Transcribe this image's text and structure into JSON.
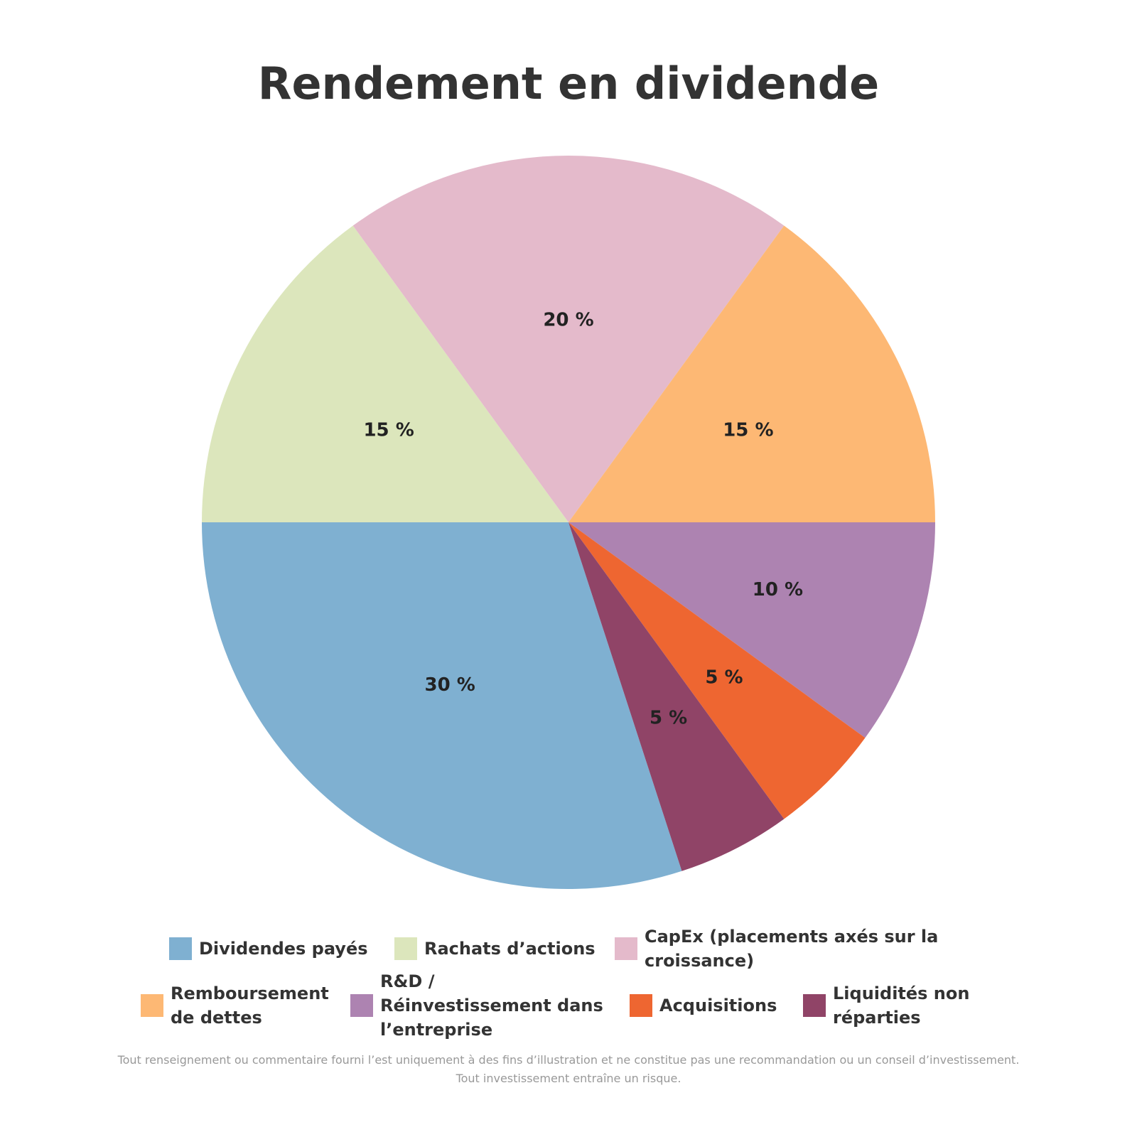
{
  "chart_data": {
    "type": "pie",
    "title": "Rendement en dividende",
    "categories": [
      "Dividendes payés",
      "Rachats d’actions",
      "CapEx (placements axés sur la croissance)",
      "Remboursement de dettes",
      "R&D / Réinvestissement dans l’entreprise",
      "Acquisitions",
      "Liquidités non réparties"
    ],
    "values": [
      30,
      15,
      20,
      15,
      10,
      5,
      5
    ],
    "value_labels": [
      "30 %",
      "15 %",
      "20 %",
      "15 %",
      "10 %",
      "5 %",
      "5 %"
    ],
    "colors": [
      "#7fb0d1",
      "#dce6bc",
      "#e4bacb",
      "#fdb874",
      "#ad83b1",
      "#ee6631",
      "#904467"
    ],
    "footnote": [
      "Tout renseignement ou commentaire fourni l’est uniquement à des fins d’illustration et ne constitue pas une recommandation ou un conseil d’investissement.",
      "Tout investissement entraîne un risque."
    ]
  }
}
